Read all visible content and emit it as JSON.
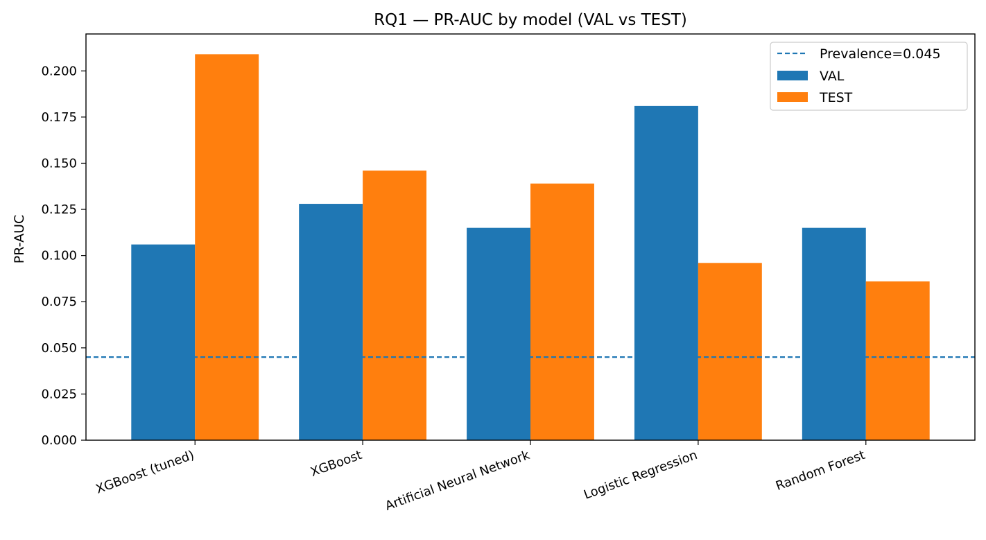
{
  "chart_data": {
    "type": "bar",
    "title": "RQ1 — PR-AUC by model (VAL vs TEST)",
    "xlabel": "",
    "ylabel": "PR-AUC",
    "categories": [
      "XGBoost (tuned)",
      "XGBoost",
      "Artificial Neural Network",
      "Logistic Regression",
      "Random Forest"
    ],
    "series": [
      {
        "name": "VAL",
        "color": "#1f77b4",
        "values": [
          0.106,
          0.128,
          0.115,
          0.181,
          0.115
        ]
      },
      {
        "name": "TEST",
        "color": "#ff7f0e",
        "values": [
          0.209,
          0.146,
          0.139,
          0.096,
          0.086
        ]
      }
    ],
    "reference_line": {
      "label": "Prevalence=0.045",
      "value": 0.045,
      "color": "#1f77b4",
      "style": "dashed"
    },
    "ylim": [
      0,
      0.22
    ],
    "yticks": [
      "0.000",
      "0.025",
      "0.050",
      "0.075",
      "0.100",
      "0.125",
      "0.150",
      "0.175",
      "0.200"
    ],
    "ytick_values": [
      0,
      0.025,
      0.05,
      0.075,
      0.1,
      0.125,
      0.15,
      0.175,
      0.2
    ],
    "grid": false,
    "legend_position": "top-right",
    "xtick_rotation": "-20deg"
  }
}
